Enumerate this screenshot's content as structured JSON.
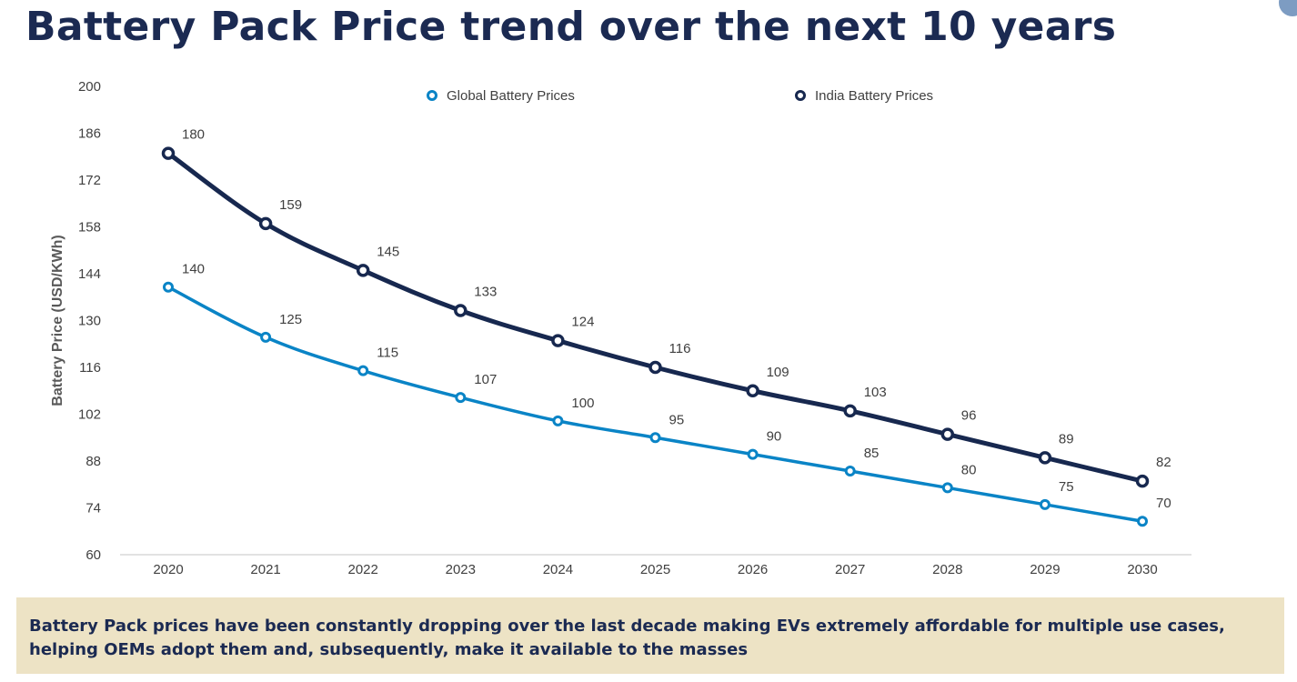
{
  "page": {
    "title": "Battery Pack Price trend over the next 10 years",
    "callout": "Battery Pack prices have been constantly dropping over the last decade making EVs extremely affordable for multiple use cases, helping OEMs adopt them and, subsequently, make it available to the masses"
  },
  "colors": {
    "title": "#1b2a52",
    "global_series": "#0a84c6",
    "india_series": "#17284f",
    "callout_bg": "#ede3c5",
    "axis_text": "#404040"
  },
  "chart_data": {
    "type": "line",
    "title": "",
    "xlabel": "",
    "ylabel": "Battery Price (USD/KWh)",
    "x": [
      "2020",
      "2021",
      "2022",
      "2023",
      "2024",
      "2025",
      "2026",
      "2027",
      "2028",
      "2029",
      "2030"
    ],
    "ylim": [
      60,
      200
    ],
    "yticks": [
      60,
      74,
      88,
      102,
      116,
      130,
      144,
      158,
      172,
      186,
      200
    ],
    "grid": false,
    "legend_position": "top",
    "series": [
      {
        "name": "Global Battery Prices",
        "color": "#0a84c6",
        "values": [
          140,
          125,
          115,
          107,
          100,
          95,
          90,
          85,
          80,
          75,
          70
        ]
      },
      {
        "name": "India Battery Prices",
        "color": "#17284f",
        "values": [
          180,
          159,
          145,
          133,
          124,
          116,
          109,
          103,
          96,
          89,
          82
        ]
      }
    ]
  }
}
